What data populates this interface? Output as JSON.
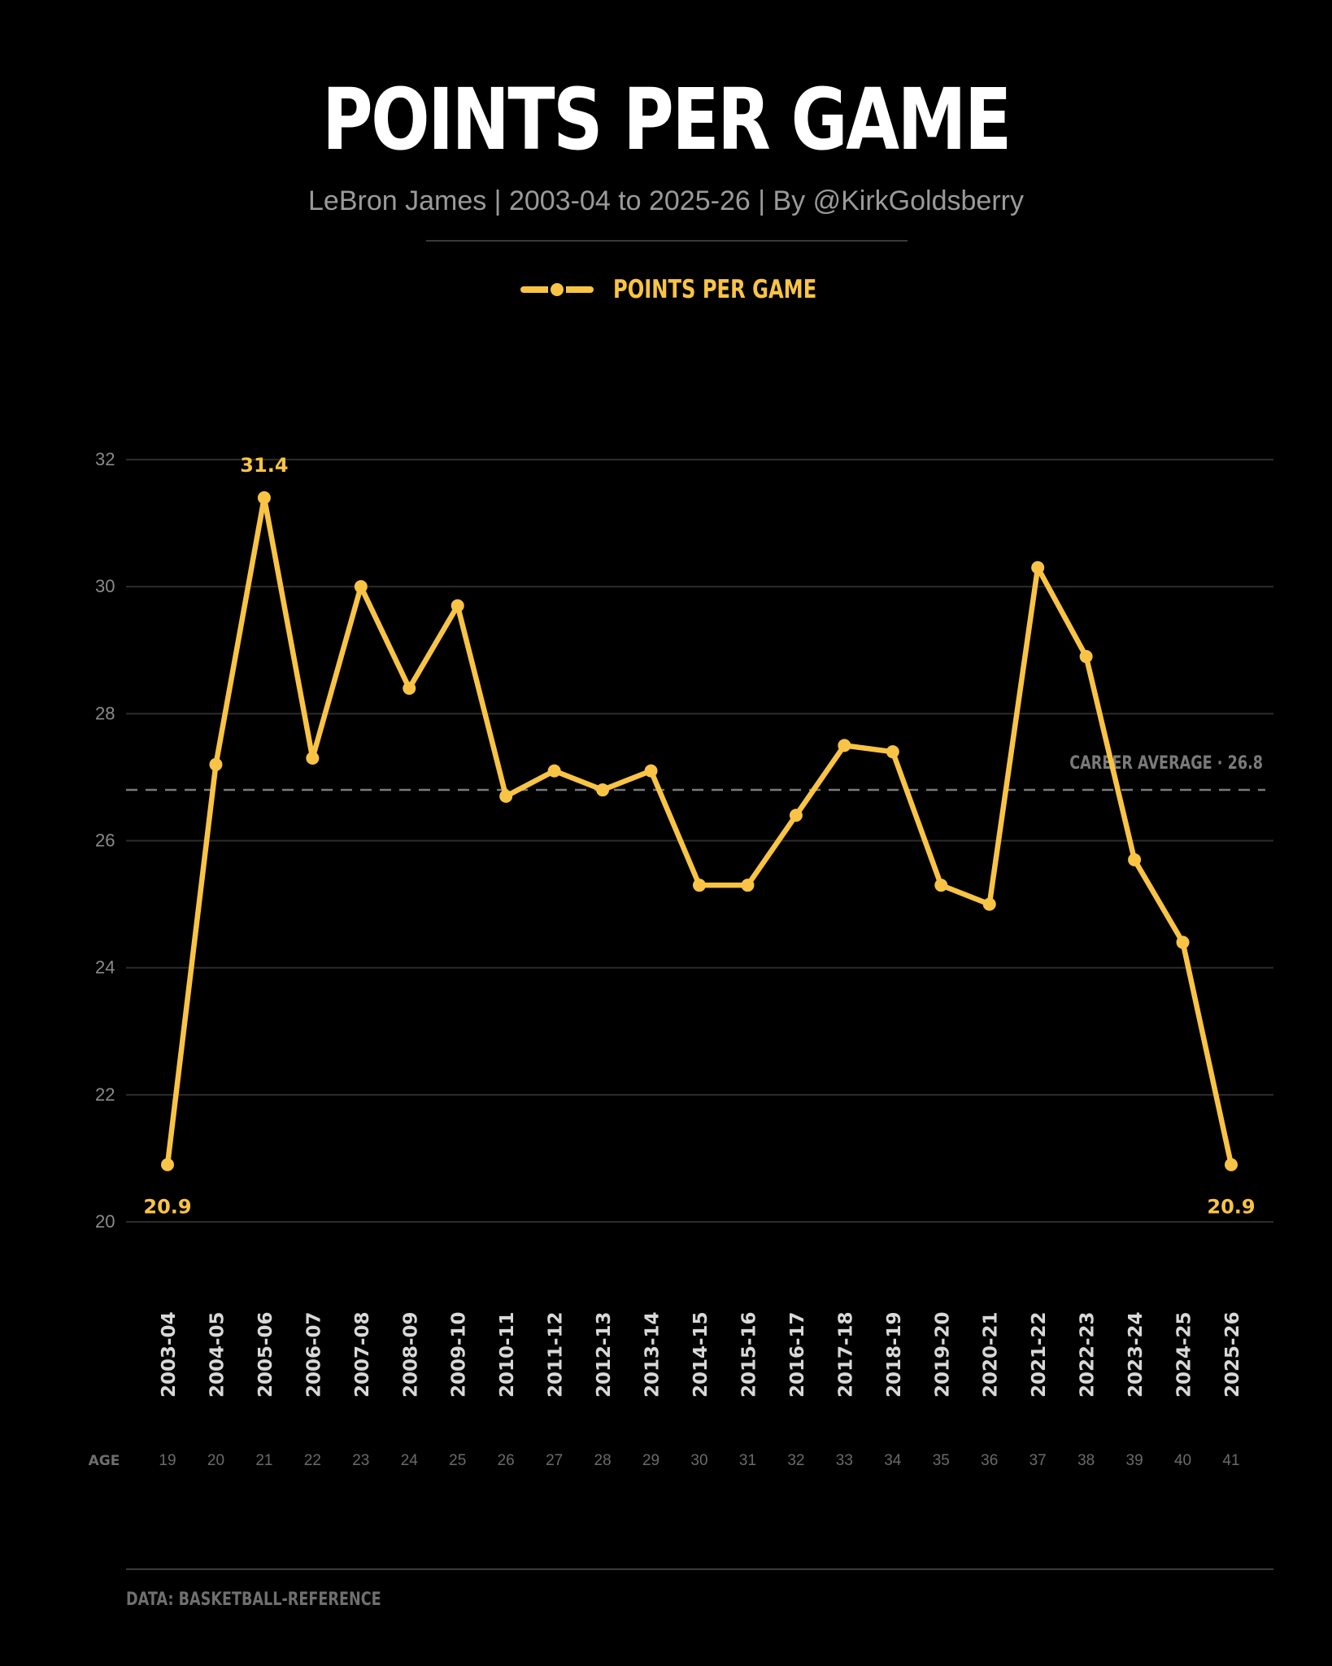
{
  "header": {
    "title": "POINTS PER GAME",
    "subtitle": "LeBron James | 2003-04 to 2025-26 | By @KirkGoldsberry"
  },
  "legend": {
    "label": "POINTS PER GAME"
  },
  "colors": {
    "background": "#000000",
    "line": "#f9c445",
    "grid": "#2c2c2c",
    "axis_text": "#8a8a8a",
    "average_line": "#7a7a7a"
  },
  "chart_data": {
    "type": "line",
    "title": "POINTS PER GAME",
    "subtitle": "LeBron James | 2003-04 to 2025-26 | By @KirkGoldsberry",
    "categories": [
      "2003-04",
      "2004-05",
      "2005-06",
      "2006-07",
      "2007-08",
      "2008-09",
      "2009-10",
      "2010-11",
      "2011-12",
      "2012-13",
      "2013-14",
      "2014-15",
      "2015-16",
      "2016-17",
      "2017-18",
      "2018-19",
      "2019-20",
      "2020-21",
      "2021-22",
      "2022-23",
      "2023-24",
      "2024-25",
      "2025-26"
    ],
    "series": [
      {
        "name": "POINTS PER GAME",
        "values": [
          20.9,
          27.2,
          31.4,
          27.3,
          30.0,
          28.4,
          29.7,
          26.7,
          27.1,
          26.8,
          27.1,
          25.3,
          25.3,
          26.4,
          27.5,
          27.4,
          25.3,
          25.0,
          30.3,
          28.9,
          25.7,
          24.4,
          20.9
        ]
      }
    ],
    "ages": [
      "19",
      "20",
      "21",
      "22",
      "23",
      "24",
      "25",
      "26",
      "27",
      "28",
      "29",
      "30",
      "31",
      "32",
      "33",
      "34",
      "35",
      "36",
      "37",
      "38",
      "39",
      "40",
      "41"
    ],
    "age_label": "AGE",
    "ylim": [
      20,
      32
    ],
    "yticks": [
      "20",
      "22",
      "24",
      "26",
      "28",
      "30",
      "32"
    ],
    "grid": true,
    "reference_line": {
      "label": "CAREER AVERAGE",
      "value_label": "26.8",
      "value": 26.8
    },
    "annotations": [
      {
        "category": "2005-06",
        "label": "31.4"
      },
      {
        "category": "2003-04",
        "label": "20.9"
      },
      {
        "category": "2025-26",
        "label": "20.9"
      }
    ],
    "legend_position": "top-center"
  },
  "footer": {
    "source": "DATA: BASKETBALL-REFERENCE"
  }
}
